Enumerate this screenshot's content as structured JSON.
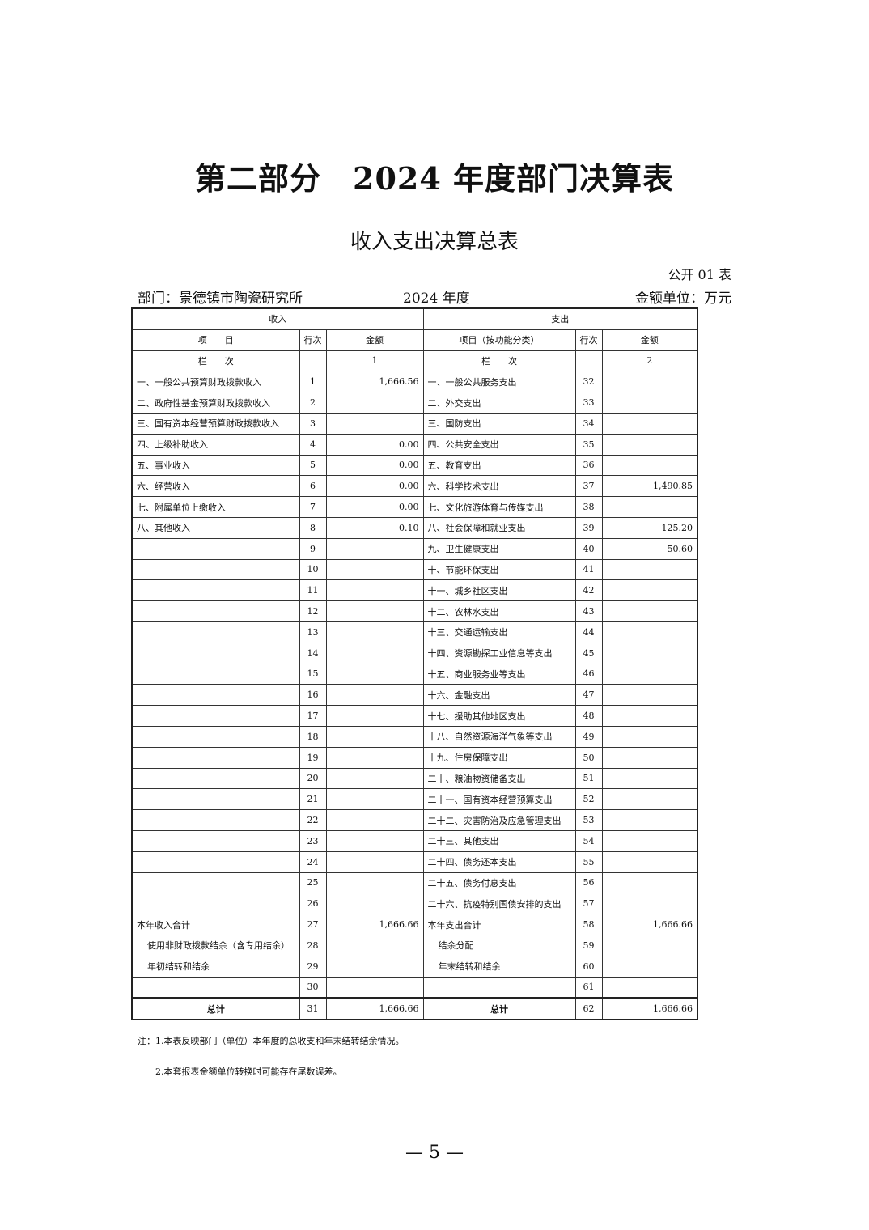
{
  "title": "第二部分　2024 年度部门决算表",
  "subtitle": "收入支出决算总表",
  "table_no": "公开 01 表",
  "department": "部门：景德镇市陶瓷研究所",
  "year": "2024 年度",
  "unit": "金额单位：万元",
  "headers": {
    "income": "收入",
    "expense": "支出",
    "item": "项　　目",
    "row_no": "行次",
    "amount": "金额",
    "item_func": "项目（按功能分类）",
    "col_label": "栏　　次",
    "col1": "1",
    "col2": "2"
  },
  "rows": [
    [
      "一、一般公共预算财政拨款收入",
      "1",
      "1,666.56",
      "一、一般公共服务支出",
      "32",
      ""
    ],
    [
      "二、政府性基金预算财政拨款收入",
      "2",
      "",
      "二、外交支出",
      "33",
      ""
    ],
    [
      "三、国有资本经营预算财政拨款收入",
      "3",
      "",
      "三、国防支出",
      "34",
      ""
    ],
    [
      "四、上级补助收入",
      "4",
      "0.00",
      "四、公共安全支出",
      "35",
      ""
    ],
    [
      "五、事业收入",
      "5",
      "0.00",
      "五、教育支出",
      "36",
      ""
    ],
    [
      "六、经营收入",
      "6",
      "0.00",
      "六、科学技术支出",
      "37",
      "1,490.85"
    ],
    [
      "七、附属单位上缴收入",
      "7",
      "0.00",
      "七、文化旅游体育与传媒支出",
      "38",
      ""
    ],
    [
      "八、其他收入",
      "8",
      "0.10",
      "八、社会保障和就业支出",
      "39",
      "125.20"
    ],
    [
      "",
      "9",
      "",
      "九、卫生健康支出",
      "40",
      "50.60"
    ],
    [
      "",
      "10",
      "",
      "十、节能环保支出",
      "41",
      ""
    ],
    [
      "",
      "11",
      "",
      "十一、城乡社区支出",
      "42",
      ""
    ],
    [
      "",
      "12",
      "",
      "十二、农林水支出",
      "43",
      ""
    ],
    [
      "",
      "13",
      "",
      "十三、交通运输支出",
      "44",
      ""
    ],
    [
      "",
      "14",
      "",
      "十四、资源勘探工业信息等支出",
      "45",
      ""
    ],
    [
      "",
      "15",
      "",
      "十五、商业服务业等支出",
      "46",
      ""
    ],
    [
      "",
      "16",
      "",
      "十六、金融支出",
      "47",
      ""
    ],
    [
      "",
      "17",
      "",
      "十七、援助其他地区支出",
      "48",
      ""
    ],
    [
      "",
      "18",
      "",
      "十八、自然资源海洋气象等支出",
      "49",
      ""
    ],
    [
      "",
      "19",
      "",
      "十九、住房保障支出",
      "50",
      ""
    ],
    [
      "",
      "20",
      "",
      "二十、粮油物资储备支出",
      "51",
      ""
    ],
    [
      "",
      "21",
      "",
      "二十一、国有资本经营预算支出",
      "52",
      ""
    ],
    [
      "",
      "22",
      "",
      "二十二、灾害防治及应急管理支出",
      "53",
      ""
    ],
    [
      "",
      "23",
      "",
      "二十三、其他支出",
      "54",
      ""
    ],
    [
      "",
      "24",
      "",
      "二十四、债务还本支出",
      "55",
      ""
    ],
    [
      "",
      "25",
      "",
      "二十五、债务付息支出",
      "56",
      ""
    ],
    [
      "",
      "26",
      "",
      "二十六、抗疫特别国债安排的支出",
      "57",
      ""
    ],
    [
      "本年收入合计",
      "27",
      "1,666.66",
      "本年支出合计",
      "58",
      "1,666.66"
    ],
    [
      "使用非财政拨款结余（含专用结余）",
      "28",
      "",
      "结余分配",
      "59",
      ""
    ],
    [
      "年初结转和结余",
      "29",
      "",
      "年末结转和结余",
      "60",
      ""
    ],
    [
      "",
      "30",
      "",
      "",
      "61",
      ""
    ],
    [
      "总计",
      "31",
      "1,666.66",
      "总计",
      "62",
      "1,666.66"
    ]
  ],
  "notes": [
    "注：1.本表反映部门（单位）本年度的总收支和年末结转结余情况。",
    "2.本套报表金额单位转换时可能存在尾数误差。"
  ],
  "page_number": "— 5 —"
}
